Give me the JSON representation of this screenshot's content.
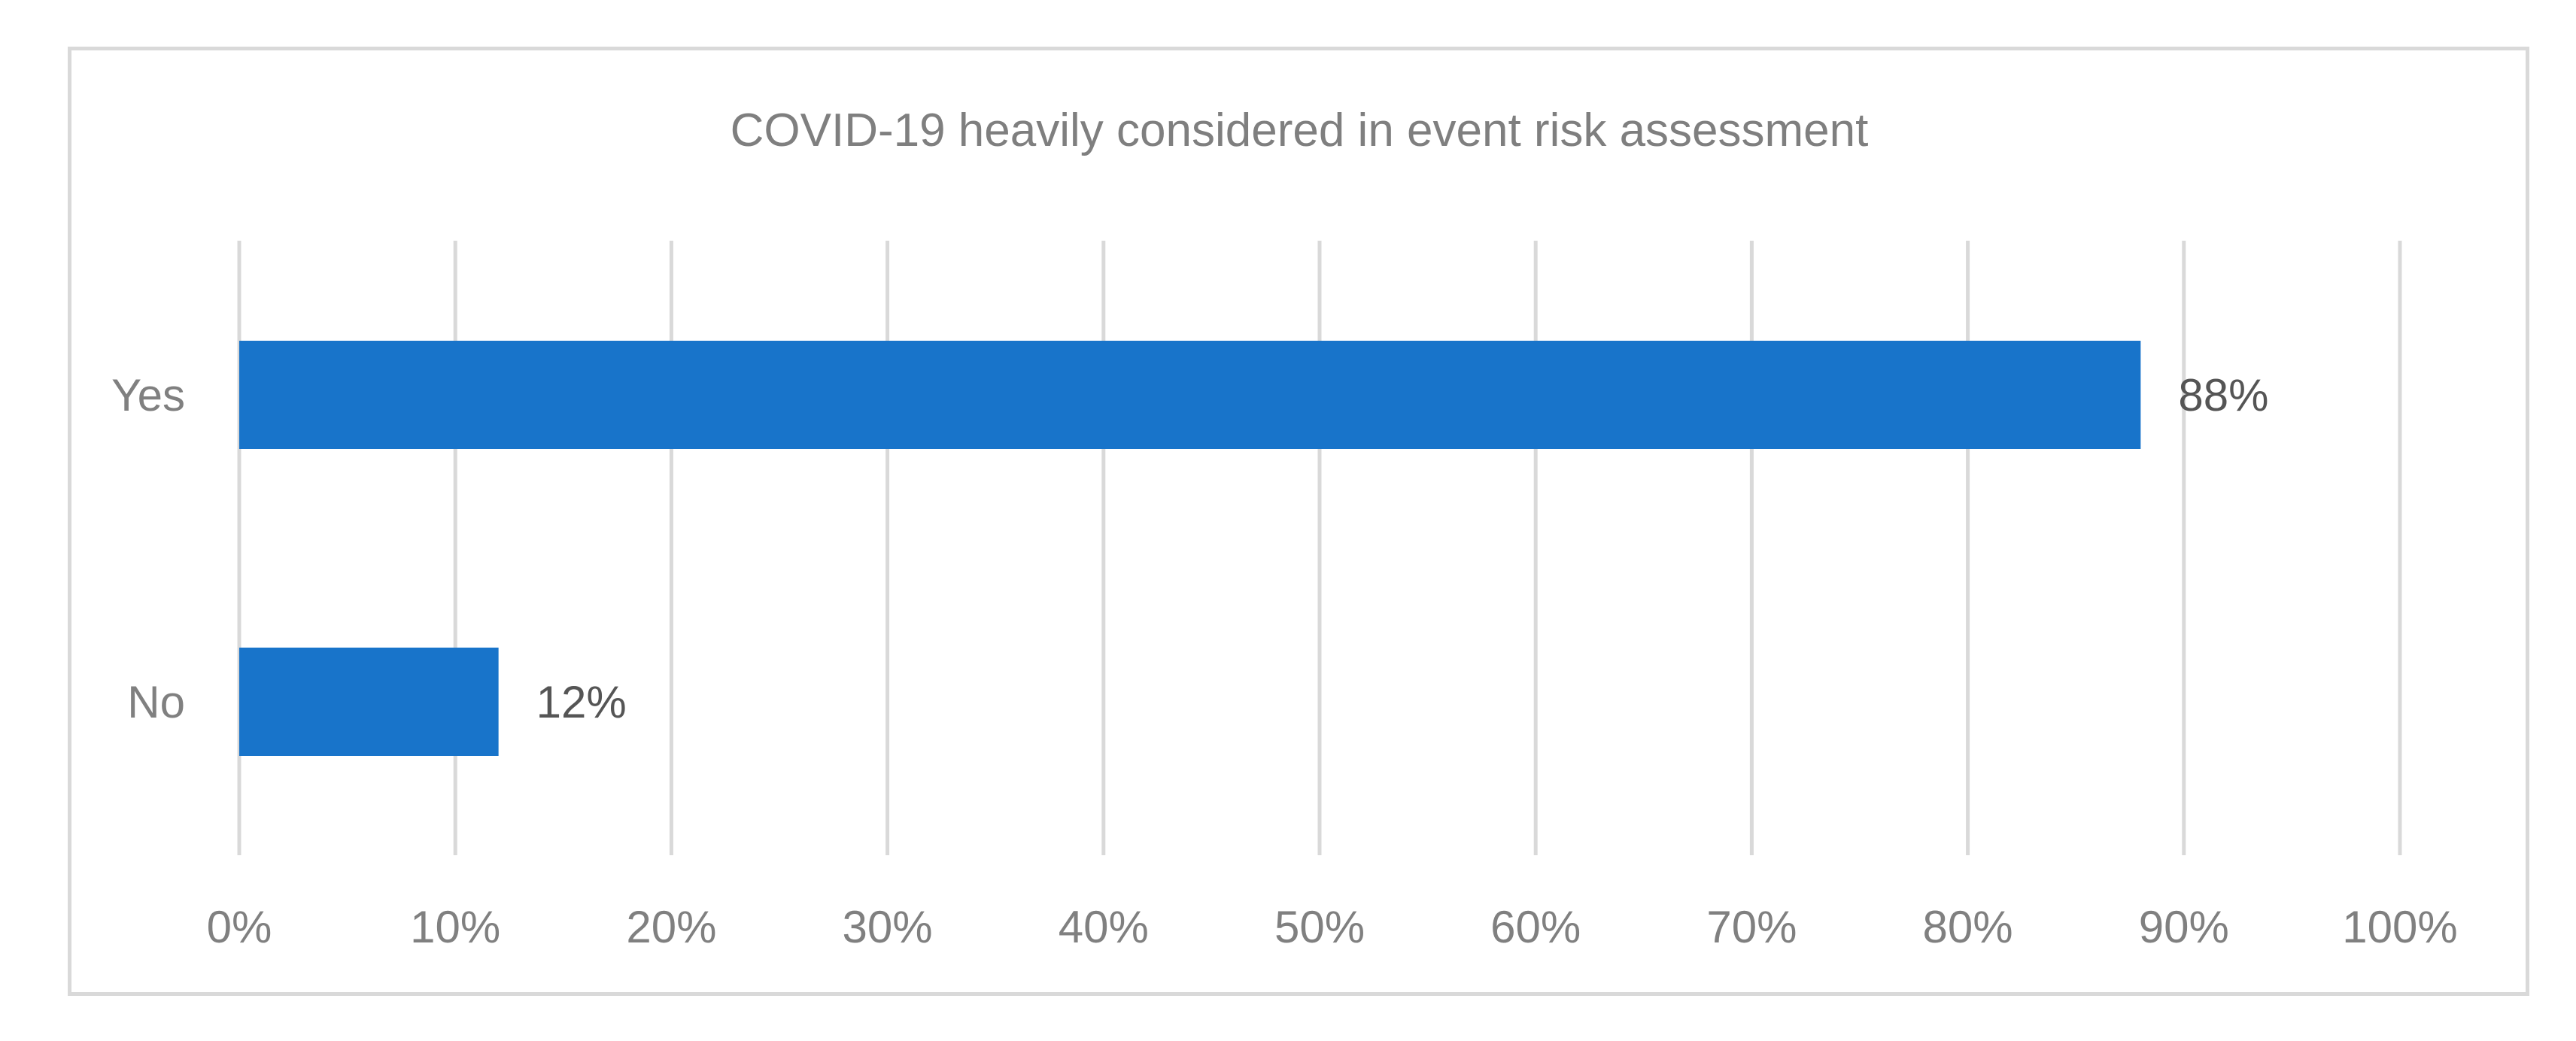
{
  "chart_data": {
    "type": "bar",
    "orientation": "horizontal",
    "title": "COVID-19 heavily considered in event risk assessment",
    "categories": [
      "Yes",
      "No"
    ],
    "values": [
      88,
      12
    ],
    "data_labels": [
      "88%",
      "12%"
    ],
    "xlim": [
      0,
      100
    ],
    "x_ticks": [
      0,
      10,
      20,
      30,
      40,
      50,
      60,
      70,
      80,
      90,
      100
    ],
    "x_tick_labels": [
      "0%",
      "10%",
      "20%",
      "30%",
      "40%",
      "50%",
      "60%",
      "70%",
      "80%",
      "90%",
      "100%"
    ],
    "grid": "vertical",
    "legend": "none",
    "bar_color": "#1874CA",
    "grid_color": "#D9D9D9"
  }
}
